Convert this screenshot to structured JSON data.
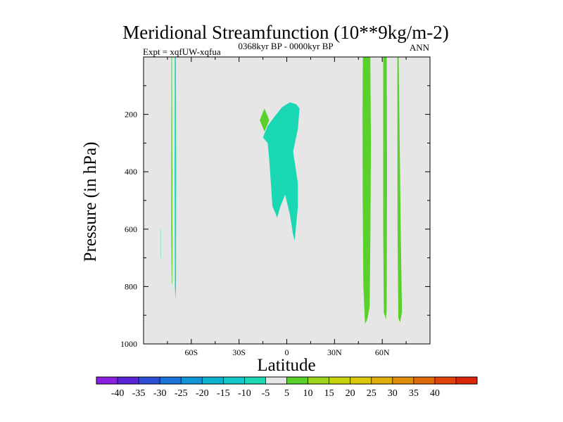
{
  "chart_data": {
    "type": "heatmap",
    "title": "Meridional Streamfunction (10**9kg/m-2)",
    "subtitle_left": "Expt = xqfUW-xqfua",
    "subtitle_center": "0368kyr BP - 0000kyr BP",
    "subtitle_right": "ANN",
    "xlabel": "Latitude",
    "ylabel": "Pressure (in hPa)",
    "xlim": [
      -90,
      90
    ],
    "ylim": [
      1000,
      0
    ],
    "x_ticks": [
      {
        "value": -60,
        "label": "60S"
      },
      {
        "value": -30,
        "label": "30S"
      },
      {
        "value": 0,
        "label": "0"
      },
      {
        "value": 30,
        "label": "30N"
      },
      {
        "value": 60,
        "label": "60N"
      }
    ],
    "y_ticks": [
      {
        "value": 200,
        "label": "200"
      },
      {
        "value": 400,
        "label": "400"
      },
      {
        "value": 600,
        "label": "600"
      },
      {
        "value": 800,
        "label": "800"
      },
      {
        "value": 1000,
        "label": "1000"
      }
    ],
    "background_color": "#e6e6e6",
    "colorbar": {
      "colors": [
        "#8a1fe0",
        "#5a23d8",
        "#2a4fd4",
        "#1a73d8",
        "#0e96d8",
        "#0db2d0",
        "#12c8c8",
        "#1ad8b4",
        "#e6e6e6",
        "#5ad02a",
        "#9ed41a",
        "#c8d40a",
        "#dcc80a",
        "#e0ae08",
        "#e08e08",
        "#e06a08",
        "#e04208",
        "#dc2408"
      ],
      "labels": [
        "-40",
        "-35",
        "-30",
        "-25",
        "-20",
        "-15",
        "-10",
        "-5",
        "5",
        "10",
        "15",
        "20",
        "25",
        "30",
        "35",
        "40"
      ]
    },
    "regions": [
      {
        "name": "region-sh-left-strip",
        "level": "-5 to 5 (above 5)",
        "color": "#5ad02a",
        "points": [
          [
            -72.5,
            0
          ],
          [
            -72.1,
            0
          ],
          [
            -71.9,
            400
          ],
          [
            -71.9,
            700
          ],
          [
            -72.0,
            790
          ],
          [
            -72.3,
            790
          ],
          [
            -72.6,
            600
          ]
        ]
      },
      {
        "name": "region-sh-right-strip",
        "level": "-5 to -10",
        "color": "#1ad8b4",
        "points": [
          [
            -70.4,
            0
          ],
          [
            -69.7,
            0
          ],
          [
            -69.5,
            400
          ],
          [
            -69.6,
            800
          ],
          [
            -69.9,
            845
          ],
          [
            -70.3,
            800
          ],
          [
            -70.5,
            400
          ]
        ]
      },
      {
        "name": "region-sh-small-sliver",
        "level": "-5 to -10",
        "color": "#1ad8b4",
        "points": [
          [
            -79.4,
            600
          ],
          [
            -79.2,
            600
          ],
          [
            -79.2,
            700
          ],
          [
            -79.4,
            700
          ]
        ]
      },
      {
        "name": "region-equatorial-cell",
        "level": "-5 to -10",
        "color": "#1ad8b4",
        "points": [
          [
            -15,
            280
          ],
          [
            -12,
            240
          ],
          [
            -8,
            210
          ],
          [
            -3,
            175
          ],
          [
            2,
            158
          ],
          [
            6,
            165
          ],
          [
            8,
            180
          ],
          [
            7,
            250
          ],
          [
            4,
            330
          ],
          [
            7,
            440
          ],
          [
            7,
            520
          ],
          [
            5,
            640
          ],
          [
            4,
            620
          ],
          [
            2,
            550
          ],
          [
            -1,
            480
          ],
          [
            -4,
            520
          ],
          [
            -6,
            560
          ],
          [
            -9,
            520
          ],
          [
            -10,
            440
          ],
          [
            -11,
            360
          ],
          [
            -12,
            300
          ]
        ]
      },
      {
        "name": "region-equatorial-bump",
        "level": "5 to 10",
        "color": "#5ad02a",
        "points": [
          [
            -17,
            220
          ],
          [
            -14,
            180
          ],
          [
            -11,
            220
          ],
          [
            -14,
            260
          ]
        ]
      },
      {
        "name": "region-nh-strip-1",
        "level": "5 to 10",
        "color": "#5ad02a",
        "points": [
          [
            47.8,
            0
          ],
          [
            52.5,
            0
          ],
          [
            52.9,
            300
          ],
          [
            52.6,
            600
          ],
          [
            52.1,
            870
          ],
          [
            50.6,
            915
          ],
          [
            49.2,
            930
          ],
          [
            48.1,
            800
          ],
          [
            47.7,
            500
          ],
          [
            47.6,
            200
          ]
        ]
      },
      {
        "name": "region-nh-strip-2",
        "level": "5 to 10",
        "color": "#5ad02a",
        "points": [
          [
            60.6,
            0
          ],
          [
            62.8,
            0
          ],
          [
            63.0,
            400
          ],
          [
            62.8,
            880
          ],
          [
            62.3,
            915
          ],
          [
            61.0,
            890
          ],
          [
            60.6,
            600
          ]
        ]
      },
      {
        "name": "region-nh-strip-3",
        "level": "5 to 10",
        "color": "#5ad02a",
        "points": [
          [
            69.5,
            0
          ],
          [
            70.3,
            0
          ],
          [
            71.6,
            600
          ],
          [
            72.4,
            890
          ],
          [
            71.2,
            925
          ],
          [
            70.1,
            910
          ],
          [
            69.6,
            600
          ]
        ]
      }
    ]
  }
}
